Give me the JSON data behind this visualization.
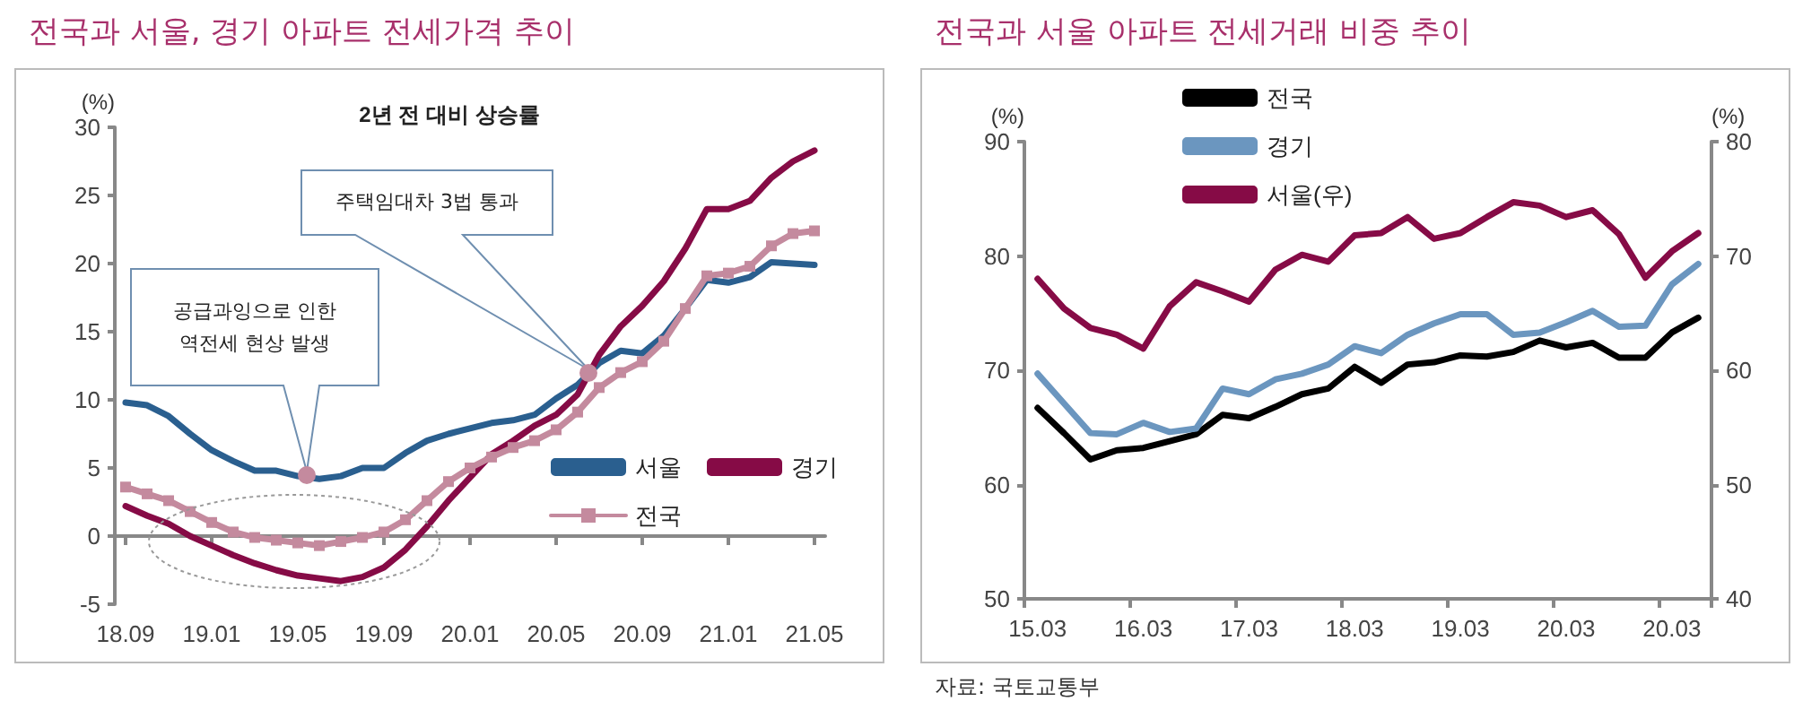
{
  "chart_data": [
    {
      "type": "line",
      "title": "전국과 서울, 경기 아파트 전세가격 추이",
      "subtitle": "2년 전 대비 상승률",
      "ylabel": "(%)",
      "categories": [
        "18.09",
        null,
        null,
        null,
        "19.01",
        null,
        null,
        null,
        "19.05",
        null,
        null,
        null,
        "19.09",
        null,
        null,
        null,
        "20.01",
        null,
        null,
        null,
        "20.05",
        null,
        null,
        null,
        "20.09",
        null,
        null,
        null,
        "21.01",
        null,
        null,
        null,
        "21.05"
      ],
      "series": [
        {
          "name": "서울",
          "color": "#2a5f8f",
          "values": [
            9.8,
            9.6,
            8.8,
            7.5,
            6.3,
            5.5,
            4.8,
            4.8,
            4.4,
            4.2,
            4.4,
            5.0,
            5.0,
            6.1,
            7.0,
            7.5,
            7.9,
            8.3,
            8.5,
            8.9,
            10.1,
            11.1,
            12.7,
            13.6,
            13.4,
            14.7,
            16.7,
            18.8,
            18.6,
            19.0,
            20.1,
            20.0,
            19.9
          ]
        },
        {
          "name": "경기",
          "color": "#860b46",
          "values": [
            2.2,
            1.5,
            0.9,
            0.0,
            -0.7,
            -1.4,
            -2.0,
            -2.5,
            -2.9,
            -3.1,
            -3.3,
            -3.0,
            -2.3,
            -1.0,
            0.7,
            2.6,
            4.3,
            6.0,
            7.0,
            8.1,
            8.9,
            10.4,
            13.3,
            15.4,
            16.9,
            18.7,
            21.1,
            24.0,
            24.0,
            24.6,
            26.3,
            27.5,
            28.3
          ]
        },
        {
          "name": "전국",
          "color": "#c48a9e",
          "marker": "square",
          "values": [
            3.6,
            3.1,
            2.6,
            1.8,
            1.0,
            0.3,
            -0.1,
            -0.3,
            -0.5,
            -0.7,
            -0.4,
            -0.1,
            0.3,
            1.2,
            2.6,
            4.0,
            5.0,
            5.8,
            6.5,
            7.0,
            7.8,
            9.1,
            10.9,
            12.0,
            12.8,
            14.3,
            16.7,
            19.1,
            19.3,
            19.8,
            21.3,
            22.2,
            22.4
          ]
        }
      ],
      "ylim": [
        -5,
        30
      ],
      "yticks": [
        -5,
        0,
        5,
        10,
        15,
        20,
        25,
        30
      ],
      "marker": "none",
      "legend": "right",
      "annotations": [
        "공급과잉으로 인한\n역전세 현상 발생",
        "주택임대차 3법 통과"
      ]
    },
    {
      "type": "line",
      "title": "전국과 서울 아파트 전세거래 비중 추이",
      "ylabel": "(%)",
      "y2label": "(%)",
      "categories": [
        "15.03",
        null,
        null,
        null,
        "16.03",
        null,
        null,
        null,
        "17.03",
        null,
        null,
        null,
        "18.03",
        null,
        null,
        null,
        "19.03",
        null,
        null,
        null,
        "20.03",
        null,
        null,
        null,
        "20.03",
        null
      ],
      "series": [
        {
          "name": "전국",
          "color": "#000000",
          "values": [
            66.7,
            64.5,
            62.2,
            63.0,
            63.2,
            63.8,
            64.4,
            66.1,
            65.8,
            66.8,
            67.9,
            68.4,
            70.3,
            68.9,
            70.5,
            70.7,
            71.3,
            71.2,
            71.6,
            72.6,
            72.0,
            72.4,
            71.1,
            71.1,
            73.3,
            74.6
          ]
        },
        {
          "name": "경기",
          "color": "#6b96bf",
          "values": [
            69.7,
            67.1,
            64.5,
            64.4,
            65.4,
            64.6,
            64.9,
            68.4,
            67.9,
            69.2,
            69.7,
            70.5,
            72.1,
            71.5,
            73.1,
            74.1,
            74.9,
            74.9,
            73.1,
            73.3,
            74.2,
            75.2,
            73.8,
            73.9,
            77.5,
            79.3
          ]
        },
        {
          "name": "서울(우)",
          "color": "#860b46",
          "axis": "y2",
          "values": [
            68.0,
            65.4,
            63.7,
            63.1,
            61.9,
            65.6,
            67.7,
            66.9,
            66.0,
            68.8,
            70.1,
            69.5,
            71.8,
            72.0,
            73.4,
            71.5,
            72.0,
            73.4,
            74.7,
            74.4,
            73.4,
            74.0,
            71.9,
            68.1,
            70.4,
            72.0
          ]
        }
      ],
      "ylim": [
        50,
        90
      ],
      "yticks": [
        50,
        60,
        70,
        80,
        90
      ],
      "y2lim": [
        40,
        80
      ],
      "y2ticks": [
        40,
        50,
        60,
        70,
        80
      ],
      "marker": "none",
      "legend": "top left",
      "annotations": [
        "자료: 국토교통부"
      ]
    }
  ]
}
